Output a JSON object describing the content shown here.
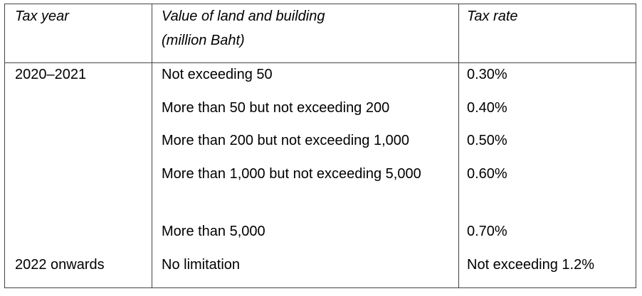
{
  "table": {
    "headers": {
      "tax_year": "Tax year",
      "value_line1": "Value of land and building",
      "value_line2": "(million Baht)",
      "tax_rate": "Tax rate"
    },
    "rows": [
      {
        "year": "2020–2021",
        "value": "Not exceeding 50",
        "rate": "0.30%"
      },
      {
        "year": "",
        "value": "More than 50 but not exceeding 200",
        "rate": "0.40%"
      },
      {
        "year": "",
        "value": "More than 200 but not exceeding 1,000",
        "rate": "0.50%"
      },
      {
        "year": "",
        "value": "More than 1,000 but not exceeding 5,000",
        "rate": "0.60%"
      },
      {
        "year": "",
        "value": "More than 5,000",
        "rate": "0.70%"
      },
      {
        "year": "2022 onwards",
        "value": "No limitation",
        "rate": "Not exceeding 1.2%"
      }
    ]
  }
}
